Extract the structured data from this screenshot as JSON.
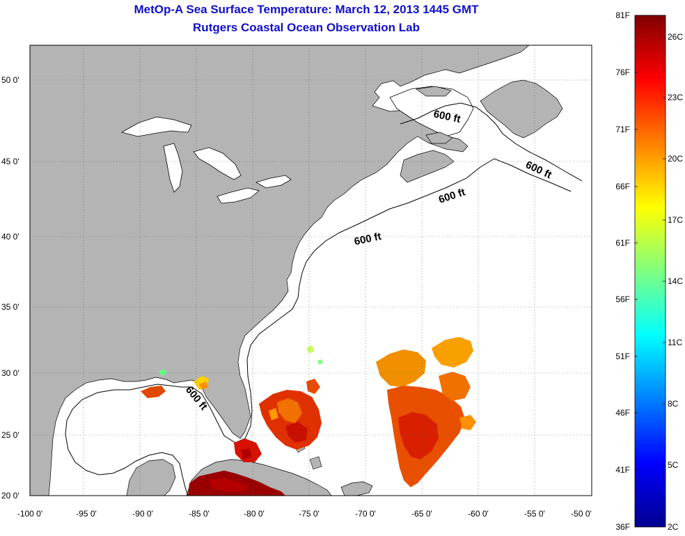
{
  "title": {
    "line1": "MetOp-A Sea Surface Temperature:  March 12, 2013 1445 GMT",
    "line2": "Rutgers Coastal Ocean Observation Lab"
  },
  "map": {
    "lat_ticks": [
      "50 0'",
      "45 0'",
      "40 0'",
      "35 0'",
      "30 0'",
      "25 0'",
      "20 0'"
    ],
    "lon_ticks": [
      "-100 0'",
      "-95 0'",
      "-90 0'",
      "-85 0'",
      "-80 0'",
      "-75 0'",
      "-70 0'",
      "-65 0'",
      "-60 0'",
      "-55 0'",
      "-50 0'"
    ],
    "contour_labels": [
      "600 ft",
      "600 ft",
      "600 ft",
      "600 ft",
      "600 ft"
    ],
    "colors": {
      "land": "#b4b4b4",
      "ocean": "#ffffff",
      "grid": "#555555"
    }
  },
  "colorbar": {
    "f_labels": [
      "81F",
      "76F",
      "71F",
      "66F",
      "61F",
      "56F",
      "51F",
      "46F",
      "41F",
      "36F"
    ],
    "c_labels": [
      "26C",
      "23C",
      "20C",
      "17C",
      "14C",
      "11C",
      "8C",
      "5C",
      "2C"
    ],
    "colormap": [
      "#00008f",
      "#0000ff",
      "#0080ff",
      "#00ffff",
      "#80ff80",
      "#ffff00",
      "#ff8000",
      "#ff0000",
      "#800000"
    ]
  }
}
